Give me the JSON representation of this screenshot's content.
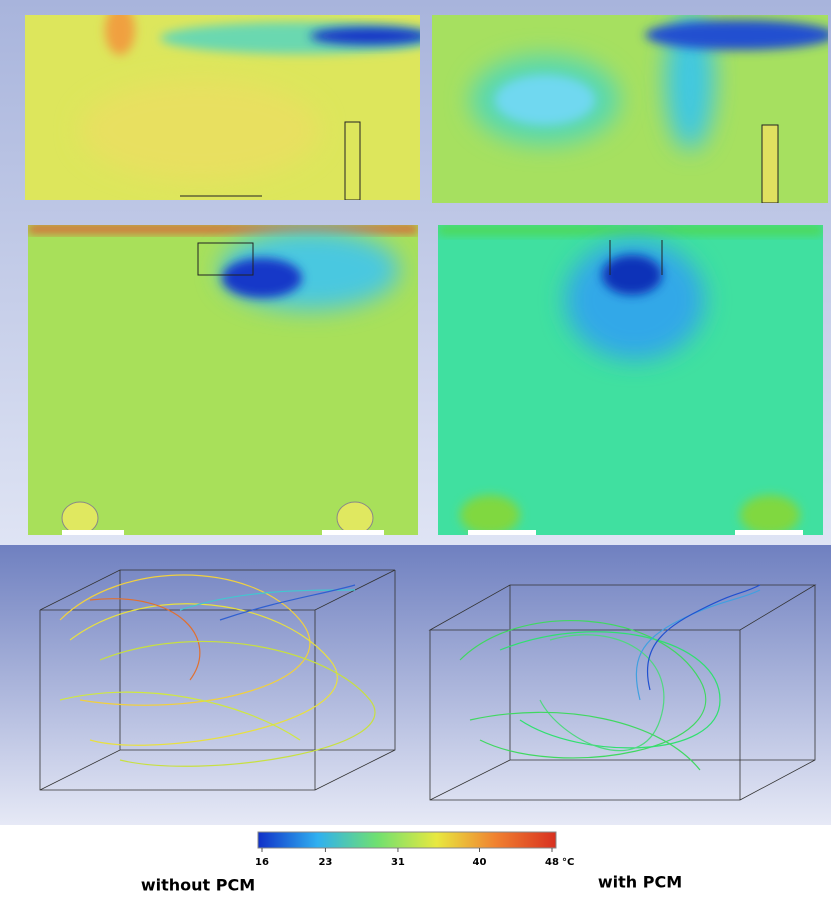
{
  "colorbar": {
    "range": [
      16,
      48
    ],
    "ticks": [
      16,
      23,
      31,
      40,
      48
    ],
    "unit": "°C",
    "colors": [
      "#1030c8",
      "#30b0f0",
      "#70e070",
      "#e8e840",
      "#f08030",
      "#d83020"
    ]
  },
  "labels": {
    "left": "without PCM",
    "right": "with PCM"
  }
}
